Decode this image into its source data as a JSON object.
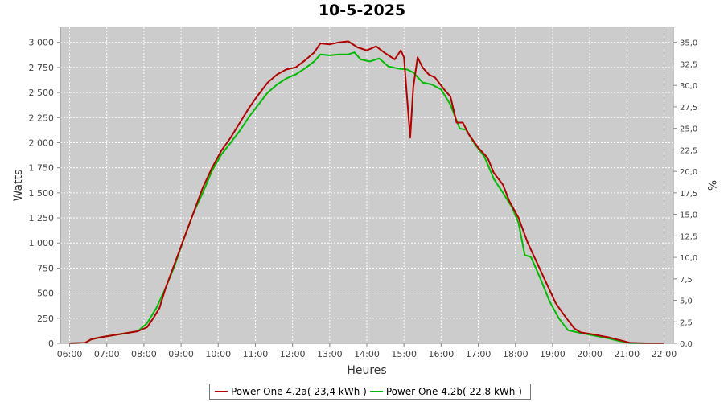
{
  "chart_data": {
    "type": "line",
    "title": "10-5-2025",
    "xlabel": "Heures",
    "ylabel": "Watts",
    "y2label": "%",
    "grid": true,
    "legend_position": "bottom",
    "x_ticks": [
      "06:00",
      "07:00",
      "08:00",
      "09:00",
      "10:00",
      "11:00",
      "12:00",
      "13:00",
      "14:00",
      "15:00",
      "16:00",
      "17:00",
      "18:00",
      "19:00",
      "20:00",
      "21:00",
      "22:00"
    ],
    "y_ticks": [
      "0",
      "250",
      "500",
      "750",
      "1 000",
      "1 250",
      "1 500",
      "1 750",
      "2 000",
      "2 250",
      "2 500",
      "2 750",
      "3 000"
    ],
    "y2_ticks": [
      "0,0",
      "2,5",
      "5,0",
      "7,5",
      "10,0",
      "12,5",
      "15,0",
      "17,5",
      "20,0",
      "22,5",
      "25,0",
      "27,5",
      "30,0",
      "32,5",
      "35,0"
    ],
    "xlim": [
      "05:45",
      "22:15"
    ],
    "ylim": [
      0,
      3150
    ],
    "y2lim": [
      0,
      36.75
    ],
    "series": [
      {
        "name": "Power-One 4.2a( 23,4 kWh )",
        "color": "#b00000",
        "points": [
          [
            "06:00",
            0
          ],
          [
            "06:25",
            5
          ],
          [
            "06:35",
            40
          ],
          [
            "06:50",
            60
          ],
          [
            "07:10",
            80
          ],
          [
            "07:30",
            100
          ],
          [
            "07:50",
            120
          ],
          [
            "08:05",
            160
          ],
          [
            "08:15",
            250
          ],
          [
            "08:25",
            350
          ],
          [
            "08:35",
            550
          ],
          [
            "08:50",
            800
          ],
          [
            "09:05",
            1050
          ],
          [
            "09:20",
            1300
          ],
          [
            "09:35",
            1550
          ],
          [
            "09:50",
            1750
          ],
          [
            "10:05",
            1920
          ],
          [
            "10:20",
            2050
          ],
          [
            "10:35",
            2200
          ],
          [
            "10:50",
            2350
          ],
          [
            "11:05",
            2480
          ],
          [
            "11:20",
            2600
          ],
          [
            "11:35",
            2680
          ],
          [
            "11:50",
            2730
          ],
          [
            "12:05",
            2750
          ],
          [
            "12:20",
            2820
          ],
          [
            "12:35",
            2900
          ],
          [
            "12:45",
            2990
          ],
          [
            "13:00",
            2980
          ],
          [
            "13:15",
            3000
          ],
          [
            "13:30",
            3010
          ],
          [
            "13:45",
            2950
          ],
          [
            "14:00",
            2920
          ],
          [
            "14:15",
            2960
          ],
          [
            "14:30",
            2890
          ],
          [
            "14:45",
            2830
          ],
          [
            "14:55",
            2920
          ],
          [
            "15:00",
            2850
          ],
          [
            "15:05",
            2450
          ],
          [
            "15:10",
            2050
          ],
          [
            "15:15",
            2550
          ],
          [
            "15:22",
            2850
          ],
          [
            "15:30",
            2750
          ],
          [
            "15:40",
            2680
          ],
          [
            "15:50",
            2650
          ],
          [
            "16:05",
            2530
          ],
          [
            "16:15",
            2460
          ],
          [
            "16:25",
            2200
          ],
          [
            "16:35",
            2200
          ],
          [
            "16:45",
            2080
          ],
          [
            "17:00",
            1950
          ],
          [
            "17:15",
            1850
          ],
          [
            "17:25",
            1700
          ],
          [
            "17:40",
            1580
          ],
          [
            "17:50",
            1420
          ],
          [
            "18:05",
            1250
          ],
          [
            "18:20",
            1000
          ],
          [
            "18:35",
            800
          ],
          [
            "18:50",
            600
          ],
          [
            "19:05",
            400
          ],
          [
            "19:20",
            270
          ],
          [
            "19:35",
            150
          ],
          [
            "19:45",
            110
          ],
          [
            "20:05",
            90
          ],
          [
            "20:30",
            60
          ],
          [
            "20:50",
            30
          ],
          [
            "21:05",
            5
          ],
          [
            "21:30",
            0
          ],
          [
            "22:00",
            0
          ]
        ]
      },
      {
        "name": "Power-One 4.2b( 22,8 kWh )",
        "color": "#00bb00",
        "points": [
          [
            "06:00",
            0
          ],
          [
            "06:25",
            5
          ],
          [
            "06:35",
            40
          ],
          [
            "06:50",
            60
          ],
          [
            "07:10",
            80
          ],
          [
            "07:30",
            100
          ],
          [
            "07:50",
            120
          ],
          [
            "08:05",
            200
          ],
          [
            "08:20",
            350
          ],
          [
            "08:35",
            550
          ],
          [
            "08:50",
            780
          ],
          [
            "09:05",
            1050
          ],
          [
            "09:20",
            1300
          ],
          [
            "09:35",
            1500
          ],
          [
            "09:50",
            1720
          ],
          [
            "10:05",
            1880
          ],
          [
            "10:20",
            2000
          ],
          [
            "10:35",
            2120
          ],
          [
            "10:50",
            2260
          ],
          [
            "11:05",
            2380
          ],
          [
            "11:20",
            2500
          ],
          [
            "11:35",
            2580
          ],
          [
            "11:50",
            2640
          ],
          [
            "12:05",
            2680
          ],
          [
            "12:20",
            2740
          ],
          [
            "12:35",
            2810
          ],
          [
            "12:45",
            2880
          ],
          [
            "13:00",
            2870
          ],
          [
            "13:15",
            2880
          ],
          [
            "13:30",
            2880
          ],
          [
            "13:40",
            2900
          ],
          [
            "13:50",
            2830
          ],
          [
            "14:05",
            2810
          ],
          [
            "14:20",
            2840
          ],
          [
            "14:35",
            2760
          ],
          [
            "14:50",
            2740
          ],
          [
            "15:05",
            2730
          ],
          [
            "15:15",
            2700
          ],
          [
            "15:30",
            2600
          ],
          [
            "15:45",
            2580
          ],
          [
            "16:00",
            2530
          ],
          [
            "16:15",
            2380
          ],
          [
            "16:30",
            2140
          ],
          [
            "16:40",
            2130
          ],
          [
            "16:55",
            1980
          ],
          [
            "17:10",
            1860
          ],
          [
            "17:25",
            1640
          ],
          [
            "17:40",
            1500
          ],
          [
            "17:55",
            1350
          ],
          [
            "18:05",
            1200
          ],
          [
            "18:15",
            880
          ],
          [
            "18:25",
            860
          ],
          [
            "18:40",
            650
          ],
          [
            "18:55",
            420
          ],
          [
            "19:10",
            250
          ],
          [
            "19:25",
            130
          ],
          [
            "19:40",
            110
          ],
          [
            "20:05",
            80
          ],
          [
            "20:30",
            50
          ],
          [
            "20:50",
            20
          ],
          [
            "21:05",
            0
          ],
          [
            "21:30",
            0
          ],
          [
            "22:00",
            0
          ]
        ]
      }
    ]
  }
}
